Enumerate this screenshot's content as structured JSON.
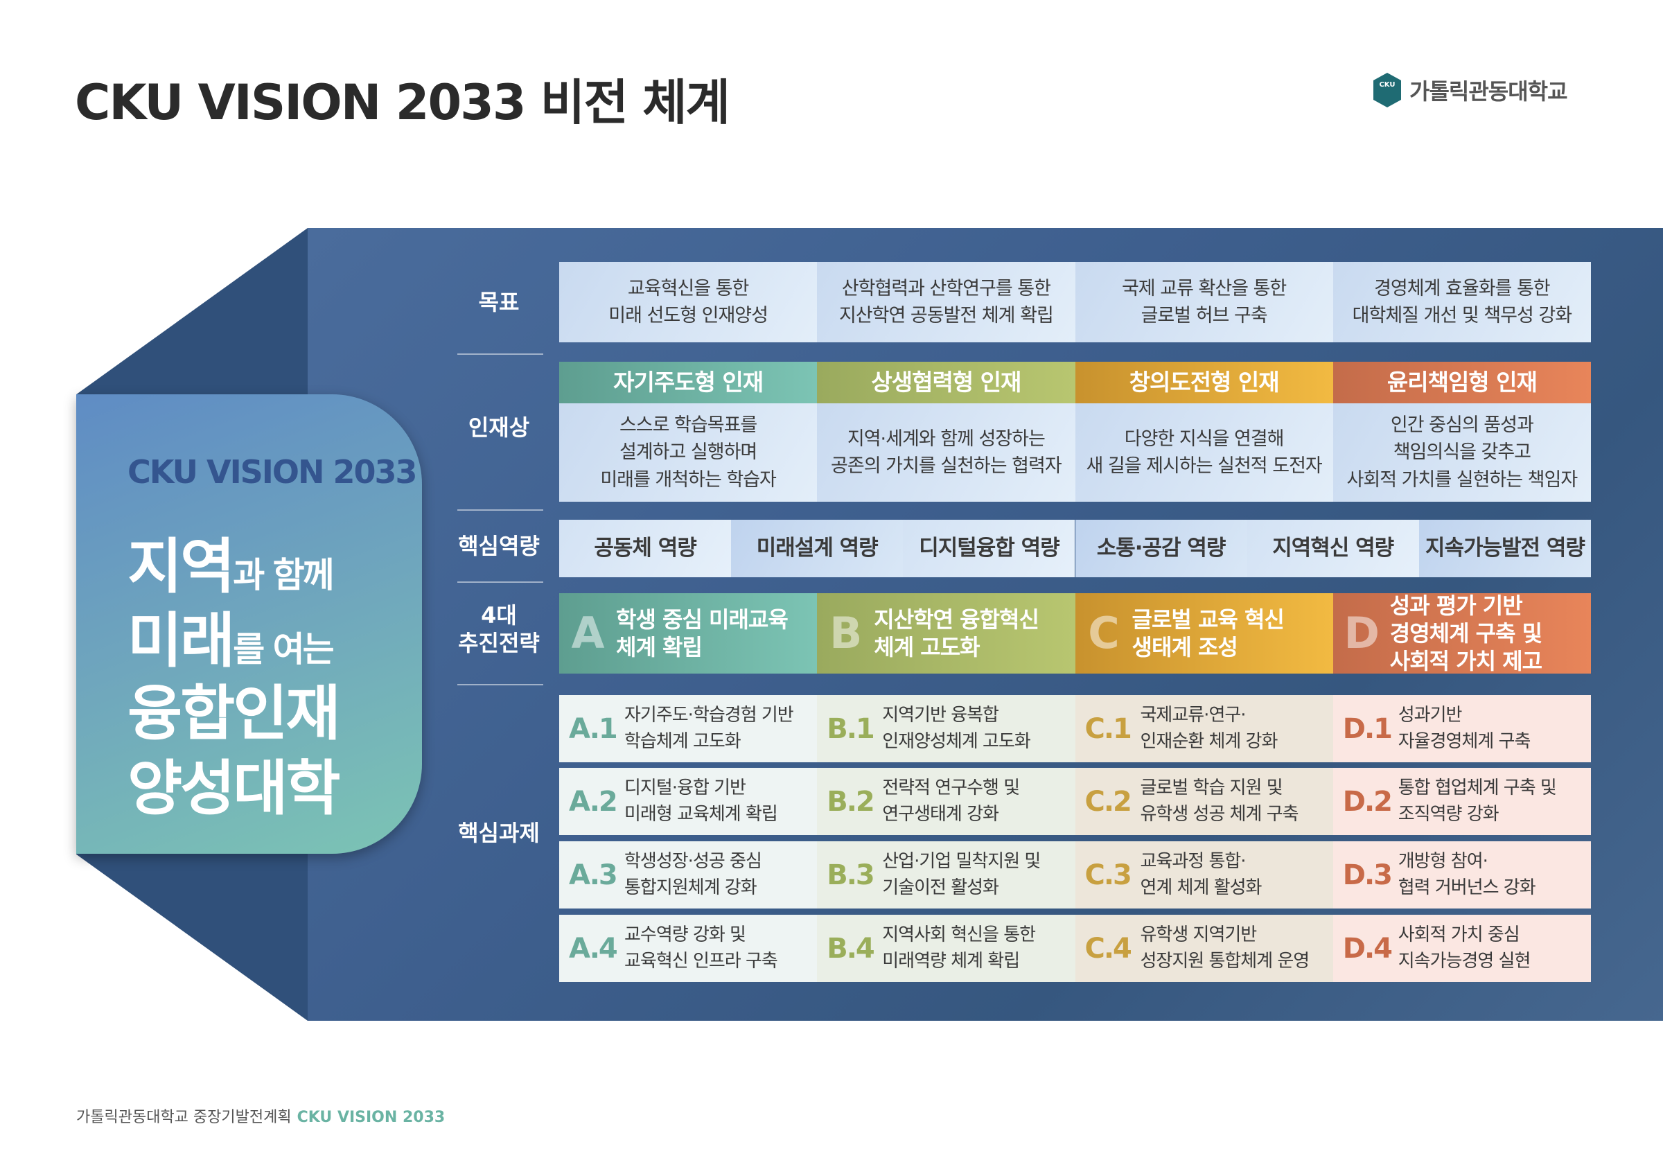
{
  "header": {
    "title": "CKU VISION 2033 비전 체계",
    "logo_text": "가톨릭관동대학교",
    "logo_mark": "CKU"
  },
  "card": {
    "vision": "CKU VISION 2033",
    "lines": [
      [
        "지역",
        "과 함께"
      ],
      [
        "미래",
        "를 여는"
      ],
      [
        "융합인재",
        ""
      ],
      [
        "양성대학",
        ""
      ]
    ]
  },
  "row_labels": {
    "goal": "목표",
    "talent": "인재상",
    "competency": "핵심역량",
    "strategy": "4대\n추진전략",
    "tasks": "핵심과제"
  },
  "goals": [
    "교육혁신을 통한\n미래 선도형 인재양성",
    "산학협력과 산학연구를 통한\n지산학연 공동발전 체계 확립",
    "국제 교류 확산을 통한\n글로벌 허브 구축",
    "경영체계 효율화를 통한\n대학체질 개선 및 책무성 강화"
  ],
  "talents": [
    {
      "title": "자기주도형 인재",
      "desc": "스스로 학습목표를\n설계하고 실행하며\n미래를 개척하는 학습자"
    },
    {
      "title": "상생협력형 인재",
      "desc": "지역·세계와 함께 성장하는\n공존의 가치를 실천하는 협력자"
    },
    {
      "title": "창의도전형 인재",
      "desc": "다양한 지식을 연결해\n새 길을 제시하는 실천적 도전자"
    },
    {
      "title": "윤리책임형 인재",
      "desc": "인간 중심의 품성과\n책임의식을 갖추고\n사회적 가치를 실현하는 책임자"
    }
  ],
  "competencies": [
    "공동체 역량",
    "미래설계 역량",
    "디지털융합 역량",
    "소통·공감 역량",
    "지역혁신 역량",
    "지속가능발전 역량"
  ],
  "strategies": [
    {
      "letter": "A",
      "text": "학생 중심 미래교육\n체계 확립"
    },
    {
      "letter": "B",
      "text": "지산학연 융합혁신\n체계 고도화"
    },
    {
      "letter": "C",
      "text": "글로벌 교육 혁신\n생태계 조성"
    },
    {
      "letter": "D",
      "text": "성과 평가 기반\n경영체계 구축 및\n사회적 가치 제고"
    }
  ],
  "tasks": [
    [
      {
        "code": "A.1",
        "text": "자기주도·학습경험 기반\n학습체계 고도화"
      },
      {
        "code": "B.1",
        "text": "지역기반 융복합\n인재양성체계 고도화"
      },
      {
        "code": "C.1",
        "text": "국제교류·연구·\n인재순환 체계 강화"
      },
      {
        "code": "D.1",
        "text": "성과기반\n자율경영체계 구축"
      }
    ],
    [
      {
        "code": "A.2",
        "text": "디지털·융합 기반\n미래형 교육체계 확립"
      },
      {
        "code": "B.2",
        "text": "전략적 연구수행 및\n연구생태계 강화"
      },
      {
        "code": "C.2",
        "text": "글로벌 학습 지원 및\n유학생 성공 체계 구축"
      },
      {
        "code": "D.2",
        "text": "통합 협업체계 구축 및\n조직역량 강화"
      }
    ],
    [
      {
        "code": "A.3",
        "text": "학생성장·성공 중심\n통합지원체계 강화"
      },
      {
        "code": "B.3",
        "text": "산업·기업 밀착지원 및\n기술이전 활성화"
      },
      {
        "code": "C.3",
        "text": "교육과정 통합·\n연계 체계 활성화"
      },
      {
        "code": "D.3",
        "text": "개방형 참여·\n협력 거버넌스 강화"
      }
    ],
    [
      {
        "code": "A.4",
        "text": "교수역량 강화 및\n교육혁신 인프라 구축"
      },
      {
        "code": "B.4",
        "text": "지역사회 혁신을 통한\n미래역량 체계 확립"
      },
      {
        "code": "C.4",
        "text": "유학생 지역기반\n성장지원 통합체계 운영"
      },
      {
        "code": "D.4",
        "text": "사회적 가치 중심\n지속가능경영 실현"
      }
    ]
  ],
  "footer": {
    "text": "가톨릭관동대학교 중장기발전계획",
    "accent": "CKU VISION 2033"
  },
  "colors": {
    "A": [
      "#5e9e90",
      "#7cc4b4"
    ],
    "B": [
      "#9aaa5e",
      "#b8c670"
    ],
    "C": [
      "#c8922e",
      "#f2ba42"
    ],
    "D": [
      "#c46c4a",
      "#e8855a"
    ],
    "code": {
      "A": "#6aaa9a",
      "B": "#9aae5a",
      "C": "#c8a040",
      "D": "#c86a48"
    },
    "taskbg": {
      "A": "#eef4f3",
      "B": "#eaefe6",
      "C": "#ede6da",
      "D": "#fbe7e2"
    }
  }
}
